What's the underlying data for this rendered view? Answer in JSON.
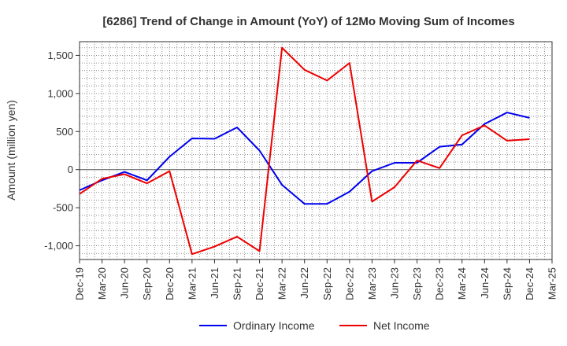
{
  "chart_data": {
    "type": "line",
    "title": "[6286]  Trend of Change in Amount (YoY) of 12Mo Moving Sum of Incomes",
    "ylabel": "Amount (million yen)",
    "xlabel": "",
    "ylim": [
      -1180,
      1680
    ],
    "yticks": [
      -1000,
      -500,
      0,
      500,
      1000,
      1500
    ],
    "ytick_labels": [
      "-1,000",
      "-500",
      "0",
      "500",
      "1,000",
      "1,500"
    ],
    "categories": [
      "Dec-19",
      "Mar-20",
      "Jun-20",
      "Sep-20",
      "Dec-20",
      "Mar-21",
      "Jun-21",
      "Sep-21",
      "Dec-21",
      "Mar-22",
      "Jun-22",
      "Sep-22",
      "Dec-22",
      "Mar-23",
      "Jun-23",
      "Sep-23",
      "Dec-23",
      "Mar-24",
      "Jun-24",
      "Sep-24",
      "Dec-24",
      "Mar-25"
    ],
    "grid": true,
    "legend_position": "bottom",
    "series": [
      {
        "name": "Ordinary Income",
        "color": "#0000ee",
        "values": [
          -270,
          -140,
          -30,
          -140,
          170,
          410,
          405,
          555,
          250,
          -200,
          -450,
          -450,
          -290,
          -20,
          90,
          90,
          300,
          330,
          600,
          750,
          680,
          null
        ]
      },
      {
        "name": "Net Income",
        "color": "#ee0000",
        "values": [
          -320,
          -120,
          -60,
          -180,
          -20,
          -1110,
          -1010,
          -880,
          -1070,
          1600,
          1310,
          1170,
          1400,
          -420,
          -230,
          120,
          20,
          450,
          580,
          380,
          400,
          null
        ]
      }
    ]
  }
}
